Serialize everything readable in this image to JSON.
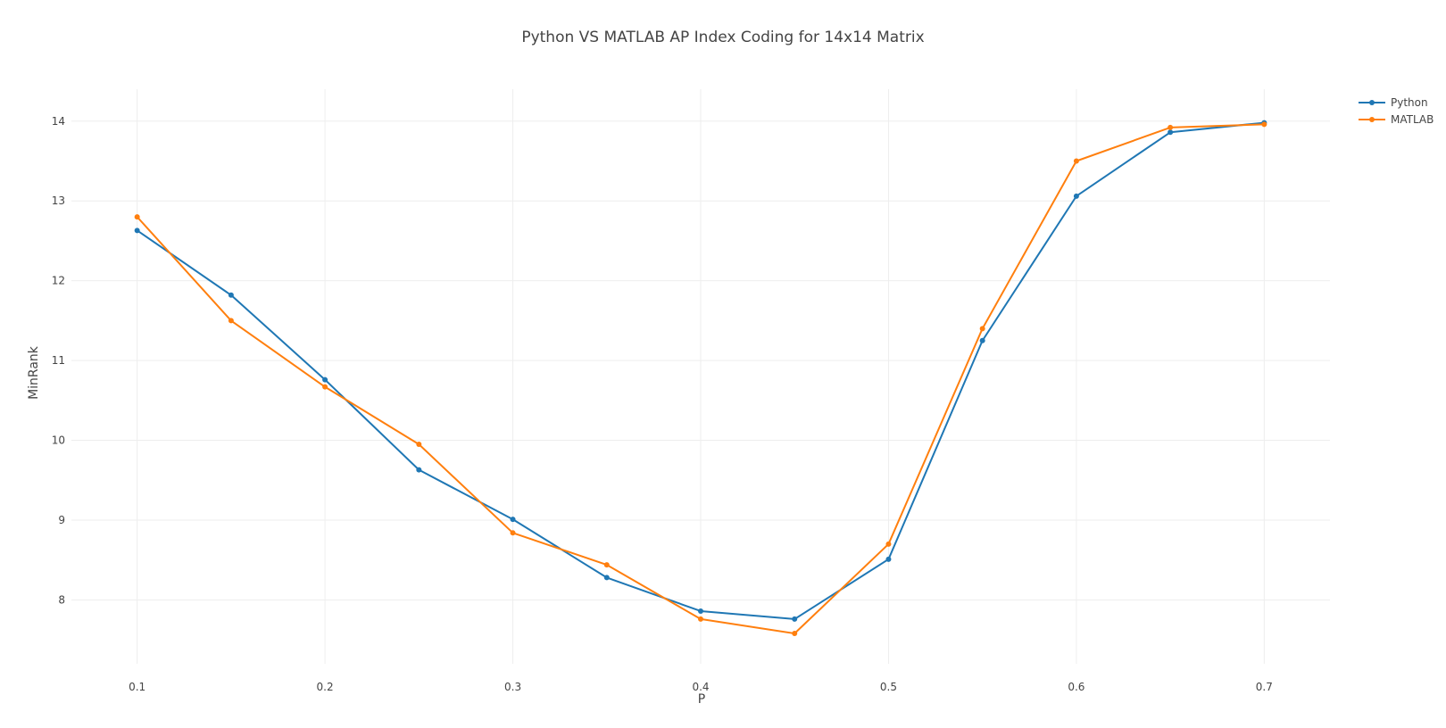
{
  "chart_data": {
    "type": "line",
    "title": "Python VS MATLAB AP Index Coding for 14x14 Matrix",
    "xlabel": "P",
    "ylabel": "MinRank",
    "x": [
      0.1,
      0.15,
      0.2,
      0.25,
      0.3,
      0.35,
      0.4,
      0.45,
      0.5,
      0.55,
      0.6,
      0.65,
      0.7
    ],
    "xlim": [
      0.065,
      0.735
    ],
    "ylim": [
      7.2,
      14.4
    ],
    "xticks": [
      0.1,
      0.2,
      0.3,
      0.4,
      0.5,
      0.6,
      0.7
    ],
    "xtick_labels": [
      "0.1",
      "0.2",
      "0.3",
      "0.4",
      "0.5",
      "0.6",
      "0.7"
    ],
    "yticks": [
      8,
      9,
      10,
      11,
      12,
      13,
      14
    ],
    "ytick_labels": [
      "8",
      "9",
      "10",
      "11",
      "12",
      "13",
      "14"
    ],
    "grid": true,
    "legend_position": "top-right",
    "series": [
      {
        "name": "Python",
        "color": "#1f77b4",
        "values": [
          12.63,
          11.82,
          10.76,
          9.63,
          9.01,
          8.28,
          7.86,
          7.76,
          8.51,
          11.25,
          13.06,
          13.86,
          13.98
        ]
      },
      {
        "name": "MATLAB",
        "color": "#ff7f0e",
        "values": [
          12.8,
          11.5,
          10.67,
          9.95,
          8.84,
          8.44,
          7.76,
          7.58,
          8.7,
          11.4,
          13.5,
          13.92,
          13.96
        ]
      }
    ]
  }
}
